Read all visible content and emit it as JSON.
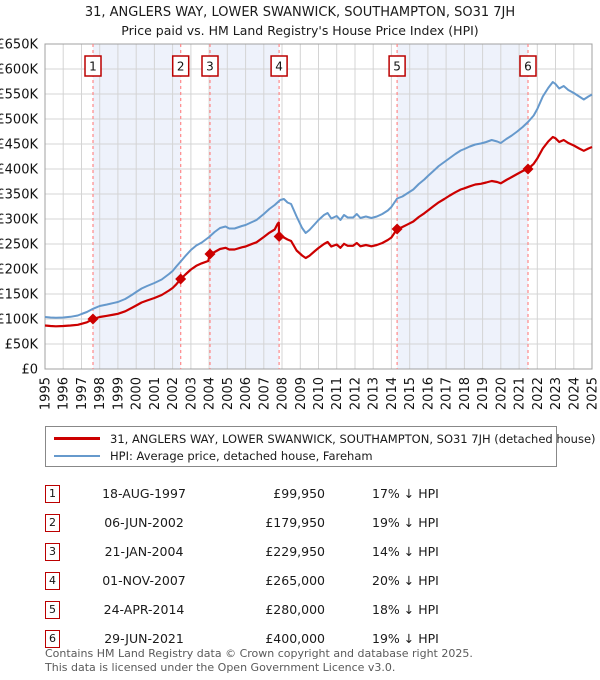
{
  "header": {
    "title": "31, ANGLERS WAY, LOWER SWANWICK, SOUTHAMPTON, SO31 7JH",
    "subtitle": "Price paid vs. HM Land Registry's House Price Index (HPI)"
  },
  "colors": {
    "price_line": "#cc0000",
    "hpi_line": "#6699cc",
    "event_dash": "#ff8888",
    "band_fill": "#eef2fb",
    "grid": "#d4d4d4",
    "plot_border": "#a0a0a0",
    "badge_border": "#bb0000"
  },
  "chart_data": {
    "type": "line",
    "x_range": [
      1995,
      2025
    ],
    "y_range": [
      0,
      650000
    ],
    "x_ticks": [
      1995,
      1996,
      1997,
      1998,
      1999,
      2000,
      2001,
      2002,
      2003,
      2004,
      2005,
      2006,
      2007,
      2008,
      2009,
      2010,
      2011,
      2012,
      2013,
      2014,
      2015,
      2016,
      2017,
      2018,
      2019,
      2020,
      2021,
      2022,
      2023,
      2024,
      2025
    ],
    "y_ticks": [
      {
        "value": 0,
        "label": "£0"
      },
      {
        "value": 50000,
        "label": "£50K"
      },
      {
        "value": 100000,
        "label": "£100K"
      },
      {
        "value": 150000,
        "label": "£150K"
      },
      {
        "value": 200000,
        "label": "£200K"
      },
      {
        "value": 250000,
        "label": "£250K"
      },
      {
        "value": 300000,
        "label": "£300K"
      },
      {
        "value": 350000,
        "label": "£350K"
      },
      {
        "value": 400000,
        "label": "£400K"
      },
      {
        "value": 450000,
        "label": "£450K"
      },
      {
        "value": 500000,
        "label": "£500K"
      },
      {
        "value": 550000,
        "label": "£550K"
      },
      {
        "value": 600000,
        "label": "£600K"
      },
      {
        "value": 650000,
        "label": "£650K"
      }
    ],
    "grid": true,
    "legend_position": "below",
    "ownership_bands": [
      [
        1997.63,
        2002.44
      ],
      [
        2004.05,
        2007.84
      ],
      [
        2014.31,
        2021.49
      ]
    ],
    "series": [
      {
        "name": "HPI: Average price, detached house, Fareham",
        "color": "#6699cc",
        "points": [
          [
            1995,
            104000
          ],
          [
            1995.3,
            103000
          ],
          [
            1995.6,
            102500
          ],
          [
            1996,
            103000
          ],
          [
            1996.4,
            104500
          ],
          [
            1996.8,
            107000
          ],
          [
            1997,
            110000
          ],
          [
            1997.3,
            114000
          ],
          [
            1997.63,
            120400
          ],
          [
            1998,
            126000
          ],
          [
            1998.4,
            129000
          ],
          [
            1998.8,
            132500
          ],
          [
            1999,
            134000
          ],
          [
            1999.4,
            140000
          ],
          [
            1999.8,
            149000
          ],
          [
            2000,
            154000
          ],
          [
            2000.3,
            161000
          ],
          [
            2000.6,
            166000
          ],
          [
            2001,
            172000
          ],
          [
            2001.4,
            179000
          ],
          [
            2001.8,
            190000
          ],
          [
            2002,
            196000
          ],
          [
            2002.2,
            205000
          ],
          [
            2002.44,
            215000
          ],
          [
            2002.7,
            226000
          ],
          [
            2003,
            238000
          ],
          [
            2003.3,
            247000
          ],
          [
            2003.6,
            253000
          ],
          [
            2004,
            264000
          ],
          [
            2004.3,
            274000
          ],
          [
            2004.6,
            282000
          ],
          [
            2004.9,
            285000
          ],
          [
            2005.1,
            281000
          ],
          [
            2005.4,
            281000
          ],
          [
            2005.8,
            286000
          ],
          [
            2006,
            288000
          ],
          [
            2006.3,
            293000
          ],
          [
            2006.6,
            298000
          ],
          [
            2007,
            310000
          ],
          [
            2007.3,
            320000
          ],
          [
            2007.6,
            328000
          ],
          [
            2007.9,
            338000
          ],
          [
            2008.1,
            340000
          ],
          [
            2008.3,
            333000
          ],
          [
            2008.5,
            330000
          ],
          [
            2008.8,
            305000
          ],
          [
            2009.1,
            282000
          ],
          [
            2009.3,
            272000
          ],
          [
            2009.5,
            278000
          ],
          [
            2009.8,
            290000
          ],
          [
            2010,
            298000
          ],
          [
            2010.3,
            308000
          ],
          [
            2010.5,
            312000
          ],
          [
            2010.7,
            301000
          ],
          [
            2011,
            306000
          ],
          [
            2011.2,
            298000
          ],
          [
            2011.4,
            308000
          ],
          [
            2011.6,
            303000
          ],
          [
            2011.9,
            303000
          ],
          [
            2012.1,
            310000
          ],
          [
            2012.3,
            302000
          ],
          [
            2012.6,
            305000
          ],
          [
            2012.9,
            302000
          ],
          [
            2013.2,
            305000
          ],
          [
            2013.5,
            310000
          ],
          [
            2013.8,
            317000
          ],
          [
            2014,
            324000
          ],
          [
            2014.31,
            341000
          ],
          [
            2014.6,
            345000
          ],
          [
            2014.9,
            352000
          ],
          [
            2015.2,
            359000
          ],
          [
            2015.5,
            370000
          ],
          [
            2015.8,
            379000
          ],
          [
            2016,
            386000
          ],
          [
            2016.3,
            396000
          ],
          [
            2016.6,
            406000
          ],
          [
            2016.9,
            414000
          ],
          [
            2017.2,
            422000
          ],
          [
            2017.5,
            430000
          ],
          [
            2017.8,
            437000
          ],
          [
            2018,
            440000
          ],
          [
            2018.3,
            445000
          ],
          [
            2018.6,
            449000
          ],
          [
            2018.9,
            451000
          ],
          [
            2019.2,
            454000
          ],
          [
            2019.5,
            458000
          ],
          [
            2019.8,
            455000
          ],
          [
            2020,
            452000
          ],
          [
            2020.3,
            460000
          ],
          [
            2020.6,
            467000
          ],
          [
            2020.9,
            475000
          ],
          [
            2021.2,
            484000
          ],
          [
            2021.49,
            494000
          ],
          [
            2021.8,
            507000
          ],
          [
            2022,
            520000
          ],
          [
            2022.3,
            545000
          ],
          [
            2022.6,
            562000
          ],
          [
            2022.85,
            574000
          ],
          [
            2023,
            570000
          ],
          [
            2023.2,
            561000
          ],
          [
            2023.45,
            566000
          ],
          [
            2023.7,
            558000
          ],
          [
            2024,
            552000
          ],
          [
            2024.3,
            545000
          ],
          [
            2024.55,
            539000
          ],
          [
            2024.8,
            545000
          ],
          [
            2025,
            549000
          ]
        ]
      },
      {
        "name": "31, ANGLERS WAY, LOWER SWANWICK, SOUTHAMPTON, SO31 7JH (detached house)",
        "color": "#cc0000",
        "points": [
          [
            1995,
            87000
          ],
          [
            1995.3,
            86000
          ],
          [
            1995.6,
            85500
          ],
          [
            1996,
            86000
          ],
          [
            1996.4,
            87000
          ],
          [
            1996.8,
            88500
          ],
          [
            1997,
            90500
          ],
          [
            1997.3,
            93500
          ],
          [
            1997.63,
            99950
          ],
          [
            1998,
            104000
          ],
          [
            1998.4,
            106500
          ],
          [
            1998.8,
            109000
          ],
          [
            1999,
            110500
          ],
          [
            1999.4,
            115500
          ],
          [
            1999.8,
            123000
          ],
          [
            2000,
            127000
          ],
          [
            2000.3,
            133000
          ],
          [
            2000.6,
            137000
          ],
          [
            2001,
            142000
          ],
          [
            2001.4,
            148000
          ],
          [
            2001.8,
            157000
          ],
          [
            2002,
            162000
          ],
          [
            2002.2,
            169500
          ],
          [
            2002.44,
            179950
          ],
          [
            2002.7,
            189000
          ],
          [
            2003,
            199000
          ],
          [
            2003.3,
            206500
          ],
          [
            2003.6,
            211500
          ],
          [
            2003.95,
            216000
          ],
          [
            2004.05,
            229950
          ],
          [
            2004.3,
            234000
          ],
          [
            2004.6,
            240000
          ],
          [
            2004.9,
            242500
          ],
          [
            2005.1,
            239000
          ],
          [
            2005.4,
            239000
          ],
          [
            2005.8,
            243500
          ],
          [
            2006,
            245000
          ],
          [
            2006.3,
            249500
          ],
          [
            2006.6,
            253500
          ],
          [
            2007,
            264000
          ],
          [
            2007.3,
            272500
          ],
          [
            2007.6,
            279000
          ],
          [
            2007.75,
            290000
          ],
          [
            2007.82,
            293000
          ],
          [
            2007.84,
            265000
          ],
          [
            2008.1,
            263000
          ],
          [
            2008.3,
            259000
          ],
          [
            2008.5,
            256000
          ],
          [
            2008.8,
            237000
          ],
          [
            2009.1,
            227000
          ],
          [
            2009.3,
            222000
          ],
          [
            2009.5,
            226500
          ],
          [
            2009.8,
            236000
          ],
          [
            2010,
            242000
          ],
          [
            2010.3,
            250000
          ],
          [
            2010.5,
            254000
          ],
          [
            2010.7,
            245000
          ],
          [
            2011,
            249000
          ],
          [
            2011.2,
            242500
          ],
          [
            2011.4,
            250500
          ],
          [
            2011.6,
            246500
          ],
          [
            2011.9,
            246500
          ],
          [
            2012.1,
            252000
          ],
          [
            2012.3,
            245500
          ],
          [
            2012.6,
            248000
          ],
          [
            2012.9,
            245500
          ],
          [
            2013.2,
            248000
          ],
          [
            2013.5,
            252000
          ],
          [
            2013.8,
            258000
          ],
          [
            2014,
            263000
          ],
          [
            2014.31,
            280000
          ],
          [
            2014.6,
            284000
          ],
          [
            2014.9,
            289500
          ],
          [
            2015.2,
            295000
          ],
          [
            2015.5,
            304000
          ],
          [
            2015.8,
            311500
          ],
          [
            2016,
            317000
          ],
          [
            2016.3,
            325500
          ],
          [
            2016.6,
            333500
          ],
          [
            2016.9,
            340000
          ],
          [
            2017.2,
            347000
          ],
          [
            2017.5,
            353500
          ],
          [
            2017.8,
            359000
          ],
          [
            2018,
            361500
          ],
          [
            2018.3,
            365500
          ],
          [
            2018.6,
            369000
          ],
          [
            2018.9,
            370500
          ],
          [
            2019.2,
            373000
          ],
          [
            2019.5,
            376000
          ],
          [
            2019.8,
            374000
          ],
          [
            2020,
            371500
          ],
          [
            2020.3,
            378000
          ],
          [
            2020.6,
            384000
          ],
          [
            2020.9,
            390000
          ],
          [
            2021.2,
            396000
          ],
          [
            2021.49,
            400000
          ],
          [
            2021.8,
            410500
          ],
          [
            2022,
            421000
          ],
          [
            2022.3,
            441000
          ],
          [
            2022.6,
            455000
          ],
          [
            2022.85,
            464000
          ],
          [
            2023,
            461500
          ],
          [
            2023.2,
            454000
          ],
          [
            2023.45,
            458000
          ],
          [
            2023.7,
            452000
          ],
          [
            2024,
            447000
          ],
          [
            2024.3,
            441000
          ],
          [
            2024.55,
            436500
          ],
          [
            2024.8,
            441000
          ],
          [
            2025,
            444000
          ]
        ]
      }
    ],
    "sale_events": [
      {
        "num": "1",
        "x": 1997.63,
        "price": 99950
      },
      {
        "num": "2",
        "x": 2002.44,
        "price": 179950
      },
      {
        "num": "3",
        "x": 2004.05,
        "price": 229950
      },
      {
        "num": "4",
        "x": 2007.84,
        "price": 265000
      },
      {
        "num": "5",
        "x": 2014.31,
        "price": 280000
      },
      {
        "num": "6",
        "x": 2021.49,
        "price": 400000
      }
    ]
  },
  "legend": {
    "items": [
      {
        "label": "31, ANGLERS WAY, LOWER SWANWICK, SOUTHAMPTON, SO31 7JH (detached house)",
        "color": "#cc0000",
        "thickness": 3
      },
      {
        "label": "HPI: Average price, detached house, Fareham",
        "color": "#6699cc",
        "thickness": 2
      }
    ]
  },
  "table": {
    "rows": [
      {
        "num": "1",
        "date": "18-AUG-1997",
        "price": "£99,950",
        "hpi_diff": "17% ↓ HPI"
      },
      {
        "num": "2",
        "date": "06-JUN-2002",
        "price": "£179,950",
        "hpi_diff": "19% ↓ HPI"
      },
      {
        "num": "3",
        "date": "21-JAN-2004",
        "price": "£229,950",
        "hpi_diff": "14% ↓ HPI"
      },
      {
        "num": "4",
        "date": "01-NOV-2007",
        "price": "£265,000",
        "hpi_diff": "20% ↓ HPI"
      },
      {
        "num": "5",
        "date": "24-APR-2014",
        "price": "£280,000",
        "hpi_diff": "18% ↓ HPI"
      },
      {
        "num": "6",
        "date": "29-JUN-2021",
        "price": "£400,000",
        "hpi_diff": "19% ↓ HPI"
      }
    ]
  },
  "footer": {
    "line1": "Contains HM Land Registry data © Crown copyright and database right 2025.",
    "line2": "This data is licensed under the Open Government Licence v3.0."
  }
}
